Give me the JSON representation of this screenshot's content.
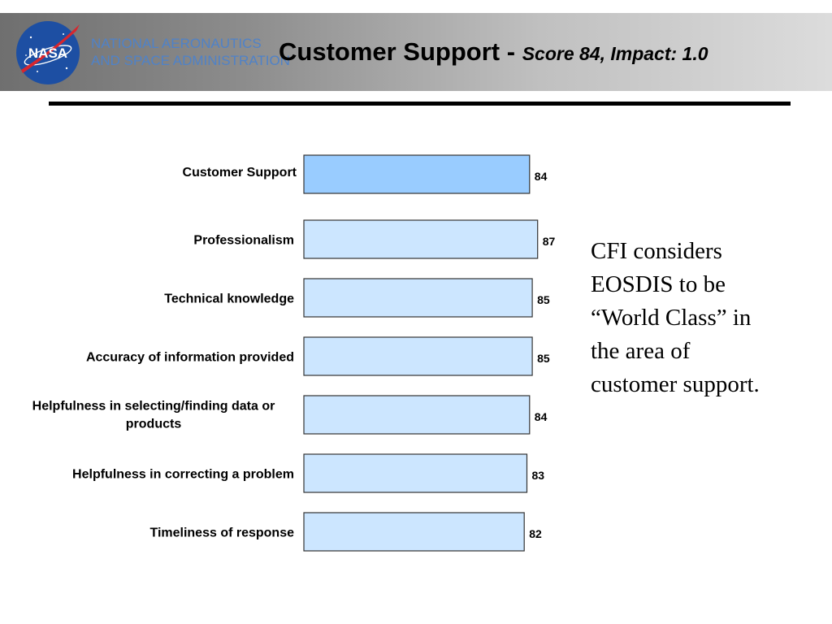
{
  "header": {
    "agency_line1": "NATIONAL AERONAUTICS",
    "agency_line2": "AND SPACE ADMINISTRATION",
    "logo_text": "NASA",
    "title_main": "Customer Support",
    "title_sep": " - ",
    "title_sub": "Score 84, Impact: 1.0"
  },
  "note": {
    "lines": [
      "CFI considers",
      "EOSDIS to be",
      "“World Class” in",
      "the area of",
      "customer support."
    ]
  },
  "colors": {
    "highlight_bar": "#99ccff",
    "bar": "#cce6ff",
    "bar_stroke": "#333333",
    "agency_text": "#4f82c8"
  },
  "chart_data": {
    "type": "bar",
    "orientation": "horizontal",
    "categories": [
      "Customer Support",
      "Professionalism",
      "Technical knowledge",
      "Accuracy of information provided",
      "Helpfulness in selecting/finding data or products",
      "Helpfulness in correcting a problem",
      "Timeliness of response"
    ],
    "category_lines": [
      [
        "Customer Support"
      ],
      [
        "Professionalism"
      ],
      [
        "Technical knowledge"
      ],
      [
        "Accuracy of information provided"
      ],
      [
        "Helpfulness in selecting/finding data or",
        "products"
      ],
      [
        "Helpfulness in correcting a problem"
      ],
      [
        "Timeliness of response"
      ]
    ],
    "values": [
      84,
      87,
      85,
      85,
      84,
      83,
      82
    ],
    "highlight_index": 0,
    "title": "",
    "xlabel": "",
    "ylabel": "",
    "grid": false,
    "axes_visible": false
  }
}
